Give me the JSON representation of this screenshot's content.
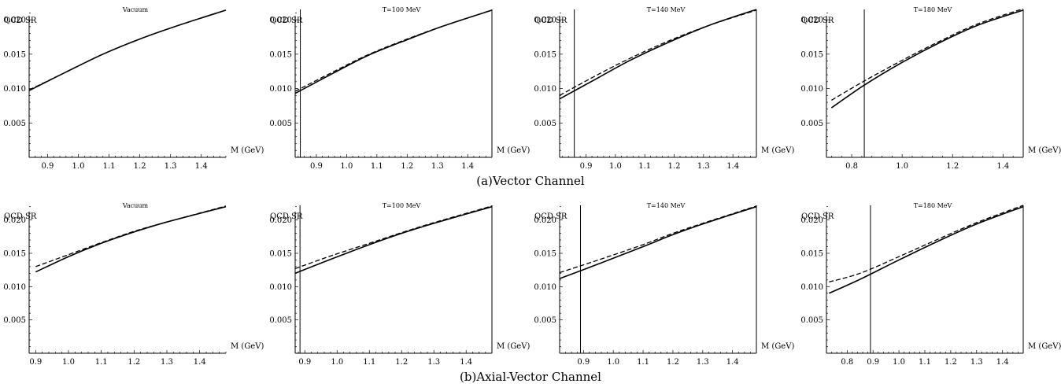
{
  "figure": {
    "captions": [
      "(a)Vector Channel",
      "(b)Axial-Vector Channel"
    ]
  },
  "chart_data": [
    {
      "type": "line",
      "row": 0,
      "col": 0,
      "title": "Vacuum",
      "ylabel": "QCD SR",
      "xlabel": "M (GeV)",
      "xlim": [
        0.84,
        1.48
      ],
      "ylim": [
        0.0,
        0.0215
      ],
      "xticks": [
        "0.9",
        "1.0",
        "1.1",
        "1.2",
        "1.3",
        "1.4"
      ],
      "yticks": [
        "0.005",
        "0.010",
        "0.015",
        "0.020"
      ],
      "vlines": [],
      "series": [
        {
          "style": "solid",
          "x": [
            0.84,
            0.96,
            1.08,
            1.2,
            1.32,
            1.48
          ],
          "y": [
            0.0097,
            0.0124,
            0.015,
            0.0172,
            0.0191,
            0.0214
          ]
        },
        {
          "style": "dashed",
          "x": [
            0.84,
            0.96,
            1.08,
            1.2,
            1.32,
            1.48
          ],
          "y": [
            0.0098,
            0.0124,
            0.015,
            0.0172,
            0.0191,
            0.0214
          ]
        }
      ]
    },
    {
      "type": "line",
      "row": 0,
      "col": 1,
      "title": "T=100 MeV",
      "ylabel": "QCD SR",
      "xlabel": "M (GeV)",
      "xlim": [
        0.83,
        1.48
      ],
      "ylim": [
        0.0,
        0.0215
      ],
      "xticks": [
        "0.9",
        "1.0",
        "1.1",
        "1.2",
        "1.3",
        "1.4"
      ],
      "yticks": [
        "0.005",
        "0.010",
        "0.015",
        "0.020"
      ],
      "vlines": [
        0.847,
        1.48
      ],
      "series": [
        {
          "style": "solid",
          "x": [
            0.83,
            0.95,
            1.07,
            1.2,
            1.32,
            1.48
          ],
          "y": [
            0.0093,
            0.0121,
            0.0148,
            0.0171,
            0.0191,
            0.0214
          ]
        },
        {
          "style": "dashed",
          "x": [
            0.83,
            0.95,
            1.07,
            1.2,
            1.32,
            1.48
          ],
          "y": [
            0.0096,
            0.0123,
            0.0149,
            0.0172,
            0.0191,
            0.0214
          ]
        }
      ]
    },
    {
      "type": "line",
      "row": 0,
      "col": 2,
      "title": "T=140 MeV",
      "ylabel": "QCD SR",
      "xlabel": "M (GeV)",
      "xlim": [
        0.81,
        1.48
      ],
      "ylim": [
        0.0,
        0.0215
      ],
      "xticks": [
        "0.9",
        "1.0",
        "1.1",
        "1.2",
        "1.3",
        "1.4"
      ],
      "yticks": [
        "0.005",
        "0.010",
        "0.015",
        "0.020"
      ],
      "vlines": [
        0.86,
        1.48
      ],
      "series": [
        {
          "style": "solid",
          "x": [
            0.81,
            0.93,
            1.05,
            1.18,
            1.32,
            1.48
          ],
          "y": [
            0.0085,
            0.0113,
            0.0141,
            0.0167,
            0.0192,
            0.0215
          ]
        },
        {
          "style": "dashed",
          "x": [
            0.81,
            0.93,
            1.05,
            1.18,
            1.32,
            1.48
          ],
          "y": [
            0.009,
            0.0118,
            0.0144,
            0.0169,
            0.0192,
            0.0214
          ]
        }
      ]
    },
    {
      "type": "line",
      "row": 0,
      "col": 3,
      "title": "T=180 MeV",
      "ylabel": "QCD SR",
      "xlabel": "M (GeV)",
      "xlim": [
        0.7,
        1.48
      ],
      "ylim": [
        0.0,
        0.0215
      ],
      "xticks": [
        "0.8",
        "1.0",
        "1.2",
        "1.4"
      ],
      "yticks": [
        "0.005",
        "0.010",
        "0.015",
        "0.020"
      ],
      "vlines": [
        0.85,
        1.48
      ],
      "series": [
        {
          "style": "solid",
          "x": [
            0.72,
            0.85,
            1.0,
            1.15,
            1.3,
            1.48
          ],
          "y": [
            0.0072,
            0.0105,
            0.0138,
            0.0167,
            0.0192,
            0.0214
          ]
        },
        {
          "style": "dashed",
          "x": [
            0.72,
            0.85,
            1.0,
            1.15,
            1.3,
            1.48
          ],
          "y": [
            0.0083,
            0.0111,
            0.0141,
            0.0169,
            0.0194,
            0.0216
          ]
        }
      ]
    },
    {
      "type": "line",
      "row": 1,
      "col": 0,
      "title": "Vacuum",
      "ylabel": "QCD SR",
      "xlabel": "M (GeV)",
      "xlim": [
        0.88,
        1.48
      ],
      "ylim": [
        0.0,
        0.0222
      ],
      "xticks": [
        "0.9",
        "1.0",
        "1.1",
        "1.2",
        "1.3",
        "1.4"
      ],
      "yticks": [
        "0.005",
        "0.010",
        "0.015",
        "0.020"
      ],
      "vlines": [],
      "series": [
        {
          "style": "solid",
          "x": [
            0.9,
            1.0,
            1.1,
            1.2,
            1.3,
            1.48
          ],
          "y": [
            0.0122,
            0.0145,
            0.0165,
            0.0182,
            0.0197,
            0.022
          ]
        },
        {
          "style": "dashed",
          "x": [
            0.9,
            1.0,
            1.1,
            1.2,
            1.3,
            1.48
          ],
          "y": [
            0.013,
            0.0148,
            0.0166,
            0.0183,
            0.0197,
            0.0221
          ]
        }
      ]
    },
    {
      "type": "line",
      "row": 1,
      "col": 1,
      "title": "T=100 MeV",
      "ylabel": "QCD SR",
      "xlabel": "M (GeV)",
      "xlim": [
        0.87,
        1.48
      ],
      "ylim": [
        0.0,
        0.0222
      ],
      "xticks": [
        "0.9",
        "1.0",
        "1.1",
        "1.2",
        "1.3",
        "1.4"
      ],
      "yticks": [
        "0.005",
        "0.010",
        "0.015",
        "0.020"
      ],
      "vlines": [
        0.885,
        1.48
      ],
      "series": [
        {
          "style": "solid",
          "x": [
            0.87,
            0.98,
            1.1,
            1.2,
            1.3,
            1.48
          ],
          "y": [
            0.012,
            0.0141,
            0.0163,
            0.018,
            0.0195,
            0.022
          ]
        },
        {
          "style": "dashed",
          "x": [
            0.87,
            0.98,
            1.1,
            1.2,
            1.3,
            1.48
          ],
          "y": [
            0.0127,
            0.0146,
            0.0165,
            0.0181,
            0.0196,
            0.0221
          ]
        }
      ]
    },
    {
      "type": "line",
      "row": 1,
      "col": 2,
      "title": "T=140 MeV",
      "ylabel": "QCD SR",
      "xlabel": "M (GeV)",
      "xlim": [
        0.82,
        1.48
      ],
      "ylim": [
        0.0,
        0.0222
      ],
      "xticks": [
        "0.9",
        "1.0",
        "1.1",
        "1.2",
        "1.3",
        "1.4"
      ],
      "yticks": [
        "0.005",
        "0.010",
        "0.015",
        "0.020"
      ],
      "vlines": [
        0.89,
        1.48
      ],
      "series": [
        {
          "style": "solid",
          "x": [
            0.82,
            0.95,
            1.1,
            1.2,
            1.3,
            1.48
          ],
          "y": [
            0.0112,
            0.0134,
            0.016,
            0.0178,
            0.0194,
            0.022
          ]
        },
        {
          "style": "dashed",
          "x": [
            0.82,
            0.95,
            1.1,
            1.2,
            1.3,
            1.48
          ],
          "y": [
            0.0121,
            0.014,
            0.0163,
            0.018,
            0.0195,
            0.0221
          ]
        }
      ]
    },
    {
      "type": "line",
      "row": 1,
      "col": 3,
      "title": "T=180 MeV",
      "ylabel": "QCD SR",
      "xlabel": "M (GeV)",
      "xlim": [
        0.72,
        1.48
      ],
      "ylim": [
        0.0,
        0.0222
      ],
      "xticks": [
        "0.8",
        "0.9",
        "1.0",
        "1.1",
        "1.2",
        "1.3",
        "1.4"
      ],
      "yticks": [
        "0.005",
        "0.010",
        "0.015",
        "0.020"
      ],
      "vlines": [
        0.89,
        1.48
      ],
      "series": [
        {
          "style": "solid",
          "x": [
            0.73,
            0.85,
            1.0,
            1.15,
            1.3,
            1.48
          ],
          "y": [
            0.009,
            0.0111,
            0.014,
            0.0168,
            0.0194,
            0.022
          ]
        },
        {
          "style": "dashed",
          "x": [
            0.73,
            0.85,
            1.0,
            1.15,
            1.3,
            1.48
          ],
          "y": [
            0.0107,
            0.012,
            0.0145,
            0.0171,
            0.0196,
            0.0222
          ]
        }
      ]
    }
  ]
}
